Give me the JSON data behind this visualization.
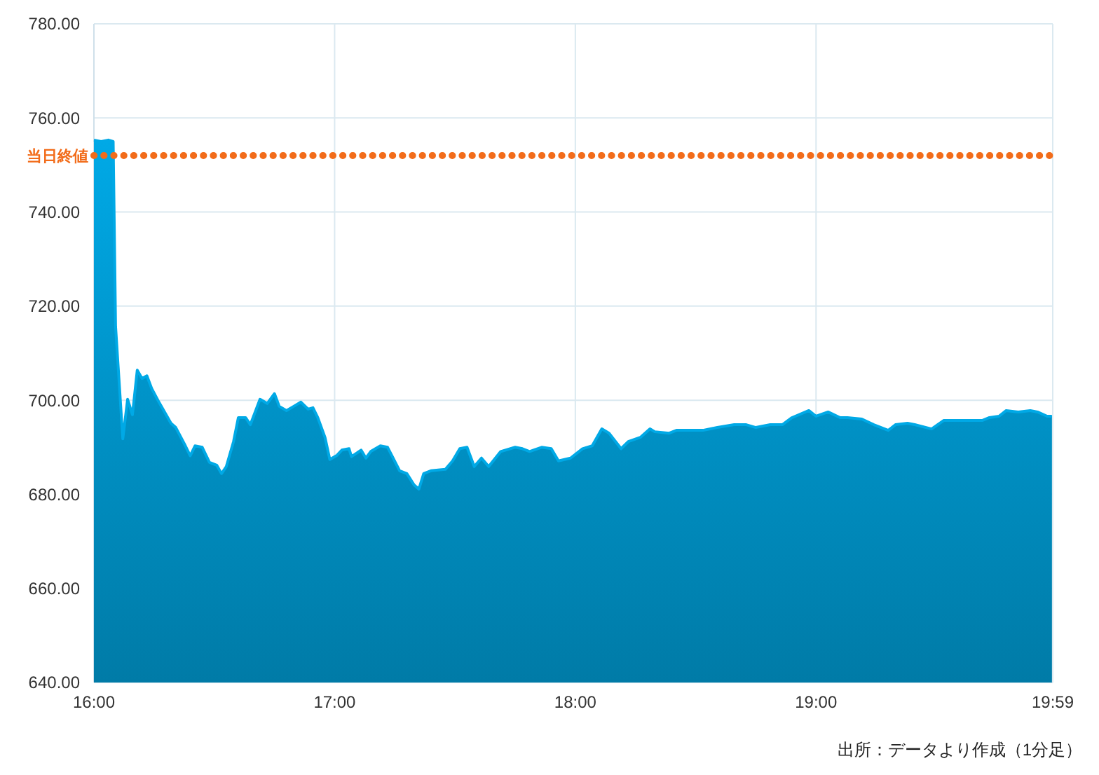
{
  "chart_data": {
    "type": "area",
    "x": [
      16.0,
      16.03,
      16.06,
      16.08,
      16.09,
      16.12,
      16.14,
      16.16,
      16.18,
      16.2,
      16.22,
      16.24,
      16.27,
      16.32,
      16.34,
      16.38,
      16.4,
      16.42,
      16.45,
      16.48,
      16.51,
      16.53,
      16.55,
      16.58,
      16.6,
      16.63,
      16.65,
      16.69,
      16.72,
      16.75,
      16.77,
      16.8,
      16.83,
      16.86,
      16.89,
      16.91,
      16.93,
      16.96,
      16.98,
      17.01,
      17.03,
      17.06,
      17.07,
      17.11,
      17.13,
      17.15,
      17.19,
      17.22,
      17.24,
      17.27,
      17.3,
      17.33,
      17.35,
      17.37,
      17.4,
      17.46,
      17.49,
      17.52,
      17.55,
      17.58,
      17.61,
      17.64,
      17.69,
      17.75,
      17.78,
      17.81,
      17.86,
      17.9,
      17.93,
      17.98,
      18.03,
      18.07,
      18.11,
      18.14,
      18.19,
      18.22,
      18.27,
      18.31,
      18.33,
      18.39,
      18.42,
      18.53,
      18.59,
      18.66,
      18.71,
      18.75,
      18.81,
      18.86,
      18.9,
      18.97,
      19.0,
      19.05,
      19.1,
      19.13,
      19.19,
      19.24,
      19.3,
      19.33,
      19.38,
      19.41,
      19.48,
      19.53,
      19.57,
      19.69,
      19.72,
      19.76,
      19.79,
      19.84,
      19.89,
      19.92,
      19.96,
      19.98
    ],
    "series": [
      {
        "color": "#00a9e6",
        "values": [
          755.3,
          755.0,
          755.3,
          755.0,
          715.7,
          691.8,
          700.2,
          696.9,
          706.4,
          704.6,
          705.2,
          702.5,
          699.6,
          695.1,
          694.2,
          690.3,
          688.2,
          690.3,
          690.0,
          686.8,
          686.2,
          684.4,
          685.9,
          691.2,
          696.3,
          696.3,
          694.8,
          700.2,
          699.3,
          701.4,
          698.7,
          697.8,
          698.7,
          699.6,
          698.1,
          698.4,
          696.3,
          692.1,
          687.4,
          688.3,
          689.4,
          689.7,
          688.0,
          689.4,
          687.7,
          689.1,
          690.3,
          690.0,
          688.0,
          685.0,
          684.4,
          682.0,
          681.1,
          684.4,
          685.0,
          685.3,
          687.1,
          689.7,
          690.0,
          685.9,
          687.7,
          685.9,
          689.1,
          690.0,
          689.7,
          689.1,
          690.0,
          689.7,
          687.1,
          687.7,
          689.7,
          690.3,
          693.9,
          693.0,
          689.7,
          691.2,
          692.1,
          693.9,
          693.3,
          693.0,
          693.6,
          693.6,
          694.2,
          694.8,
          694.8,
          694.2,
          694.8,
          694.8,
          696.3,
          697.8,
          696.6,
          697.5,
          696.3,
          696.3,
          696.0,
          694.8,
          693.6,
          694.8,
          695.1,
          694.8,
          693.9,
          695.7,
          695.7,
          695.7,
          696.3,
          696.6,
          697.8,
          697.5,
          697.8,
          697.5,
          696.6,
          696.6
        ]
      }
    ],
    "xlim": [
      16,
      19.9833
    ],
    "xticks": [
      {
        "value": 16,
        "label": "16:00"
      },
      {
        "value": 17,
        "label": "17:00"
      },
      {
        "value": 18,
        "label": "18:00"
      },
      {
        "value": 19,
        "label": "19:00"
      },
      {
        "value": 19.9833,
        "label": "19:59"
      }
    ],
    "ylim": [
      640,
      780
    ],
    "yticks": [
      {
        "value": 640,
        "label": "640.00"
      },
      {
        "value": 660,
        "label": "660.00"
      },
      {
        "value": 680,
        "label": "680.00"
      },
      {
        "value": 700,
        "label": "700.00"
      },
      {
        "value": 720,
        "label": "720.00"
      },
      {
        "value": 740,
        "label": "740.00"
      },
      {
        "value": 760,
        "label": "760.00"
      },
      {
        "value": 780,
        "label": "780.00"
      }
    ],
    "grid": true,
    "ref_lines": [
      {
        "axis": "y",
        "value": 752,
        "label": "当日終値",
        "color": "#f26c1a",
        "line_style": "dotted"
      }
    ],
    "annotations": [
      "出所：データより作成（1分足）"
    ]
  }
}
